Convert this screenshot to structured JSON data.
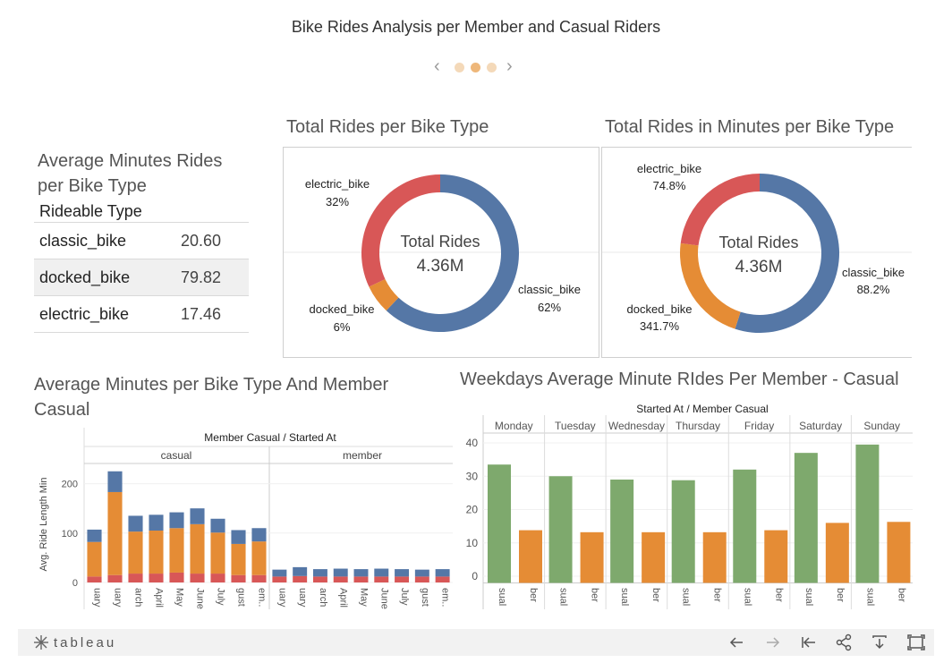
{
  "dashboard": {
    "title": "Bike Rides Analysis per Member and Casual Riders",
    "pager": {
      "pages": 3,
      "active_index": 1
    }
  },
  "avg_minutes_table": {
    "title": "Average Minutes Rides per Bike Type",
    "header": "Rideable Type",
    "rows": [
      {
        "type": "classic_bike",
        "value": "20.60"
      },
      {
        "type": "docked_bike",
        "value": "79.82"
      },
      {
        "type": "electric_bike",
        "value": "17.46"
      }
    ]
  },
  "donut_rides": {
    "title": "Total Rides per Bike Type",
    "center_label": "Total Rides",
    "center_value": "4.36M",
    "slices": [
      {
        "name": "classic_bike",
        "pct_label": "62%",
        "share": 0.62,
        "color": "#5577a6"
      },
      {
        "name": "docked_bike",
        "pct_label": "6%",
        "share": 0.06,
        "color": "#e58c35"
      },
      {
        "name": "electric_bike",
        "pct_label": "32%",
        "share": 0.32,
        "color": "#d85757"
      }
    ]
  },
  "donut_minutes": {
    "title": "Total Rides in Minutes per Bike Type",
    "center_label": "Total Rides",
    "center_value": "4.36M",
    "slices": [
      {
        "name": "classic_bike",
        "pct_label": "88.2%",
        "share": 0.55,
        "color": "#5577a6"
      },
      {
        "name": "docked_bike",
        "pct_label": "341.7%",
        "share": 0.22,
        "color": "#e58c35"
      },
      {
        "name": "electric_bike",
        "pct_label": "74.8%",
        "share": 0.23,
        "color": "#d85757"
      }
    ]
  },
  "footer": {
    "logo_text": "tableau",
    "icons": [
      "undo-icon",
      "redo-icon",
      "revert-icon",
      "share-icon",
      "download-icon",
      "fullscreen-icon"
    ]
  },
  "chart_data": [
    {
      "type": "bar",
      "subtype": "stacked",
      "title": "Average Minutes per Bike Type And Member Casual",
      "header": "Member Casual / Started At",
      "groups": [
        "casual",
        "member"
      ],
      "categories": [
        "January",
        "February",
        "March",
        "April",
        "May",
        "June",
        "July",
        "August",
        "September"
      ],
      "tick_labels": [
        "uary",
        "uary",
        "arch",
        "April",
        "May",
        "June",
        "July",
        "gust",
        "em.."
      ],
      "ylabel": "Avg. Ride Length Min",
      "yticks": [
        0,
        100,
        200
      ],
      "ylim": [
        0,
        230
      ],
      "colors": {
        "electric": "#d85757",
        "docked": "#e58c35",
        "classic": "#5577a6"
      },
      "series": [
        {
          "group": "casual",
          "name": "electric",
          "values": [
            12,
            15,
            18,
            18,
            20,
            18,
            18,
            15,
            15
          ]
        },
        {
          "group": "casual",
          "name": "docked",
          "values": [
            70,
            168,
            85,
            87,
            90,
            100,
            83,
            63,
            68
          ]
        },
        {
          "group": "casual",
          "name": "classic",
          "values": [
            25,
            42,
            32,
            32,
            32,
            32,
            28,
            28,
            27
          ]
        },
        {
          "group": "member",
          "name": "electric",
          "values": [
            12,
            13,
            12,
            12,
            12,
            12,
            12,
            12,
            12
          ]
        },
        {
          "group": "member",
          "name": "classic",
          "values": [
            14,
            18,
            15,
            16,
            15,
            16,
            15,
            14,
            15
          ]
        }
      ]
    },
    {
      "type": "bar",
      "title": "Weekdays Average Minute RIdes Per Member - Casual",
      "header": "Started At / Member Casual",
      "categories": [
        "Monday",
        "Tuesday",
        "Wednesday",
        "Thursday",
        "Friday",
        "Saturday",
        "Sunday"
      ],
      "bar_labels": [
        "sual",
        "ber"
      ],
      "yticks": [
        0,
        10,
        20,
        30,
        40
      ],
      "ylim": [
        -2,
        42
      ],
      "series": [
        {
          "name": "casual",
          "color": "#7ea96d",
          "values": [
            33.5,
            30,
            29,
            28.8,
            32,
            37,
            39.5
          ]
        },
        {
          "name": "member",
          "color": "#e58c35",
          "values": [
            13.8,
            13.2,
            13.2,
            13.2,
            13.8,
            16,
            16.3
          ]
        }
      ]
    }
  ]
}
